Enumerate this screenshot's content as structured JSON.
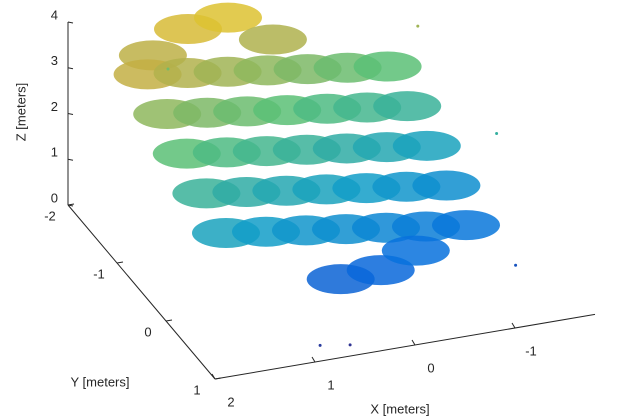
{
  "chart_data": {
    "type": "scatter3d",
    "xlabel": "X [meters]",
    "ylabel": "Y [meters]",
    "zlabel": "Z [meters]",
    "xlim": [
      -1.8,
      2
    ],
    "ylim": [
      -2,
      1
    ],
    "zlim": [
      0,
      4
    ],
    "xticks": [
      -1,
      0,
      1,
      2
    ],
    "yticks": [
      -2,
      -1,
      0,
      1
    ],
    "zticks": [
      0,
      1,
      2,
      3,
      4
    ],
    "colormap": "parula",
    "series": [
      {
        "x": [
          0.8,
          0.4,
          1.2,
          0.0,
          1.4,
          1.0,
          0.6,
          0.2,
          -0.2,
          -0.6,
          -1.0,
          1.4,
          1.0,
          0.6,
          0.2,
          -0.2,
          -0.6,
          -1.0,
          1.4,
          1.0,
          0.6,
          0.2,
          -0.2,
          -0.6,
          -1.0,
          1.4,
          1.0,
          0.6,
          0.2,
          -0.2,
          -0.6,
          -1.0,
          1.4,
          1.0,
          0.6,
          0.2,
          -0.2,
          -0.6,
          -1.0,
          0.4,
          0.0,
          -0.4
        ],
        "y": [
          -2.0,
          -2.0,
          -1.9,
          -1.9,
          -1.6,
          -1.6,
          -1.6,
          -1.6,
          -1.6,
          -1.6,
          -1.6,
          -1.2,
          -1.2,
          -1.2,
          -1.2,
          -1.2,
          -1.2,
          -1.2,
          -0.8,
          -0.8,
          -0.8,
          -0.8,
          -0.8,
          -0.8,
          -0.8,
          -0.4,
          -0.4,
          -0.4,
          -0.4,
          -0.4,
          -0.4,
          -0.4,
          0,
          0,
          0,
          0,
          0,
          0,
          0,
          0.3,
          0.3,
          0.2
        ],
        "z": [
          3.4,
          3.5,
          3.1,
          3.0,
          3.14,
          3.02,
          2.9,
          2.78,
          2.66,
          2.54,
          2.42,
          2.78,
          2.66,
          2.54,
          2.42,
          2.3,
          2.18,
          2.06,
          2.42,
          2.3,
          2.18,
          2.06,
          1.94,
          1.82,
          1.7,
          2.06,
          1.94,
          1.82,
          1.7,
          1.58,
          1.46,
          1.34,
          1.7,
          1.58,
          1.46,
          1.34,
          1.22,
          1.1,
          0.98,
          0.7,
          0.75,
          0.9
        ]
      },
      {
        "x": [
          1.0,
          -1.2,
          -1.4,
          -1.6,
          0.9,
          0.6,
          -1.3
        ],
        "y": [
          -2.0,
          -2.0,
          -1.8,
          -0.6,
          0.9,
          0.9,
          0.4
        ],
        "z": [
          2.6,
          3.9,
          2.9,
          2.0,
          0.2,
          0.1,
          0.5
        ]
      }
    ]
  }
}
